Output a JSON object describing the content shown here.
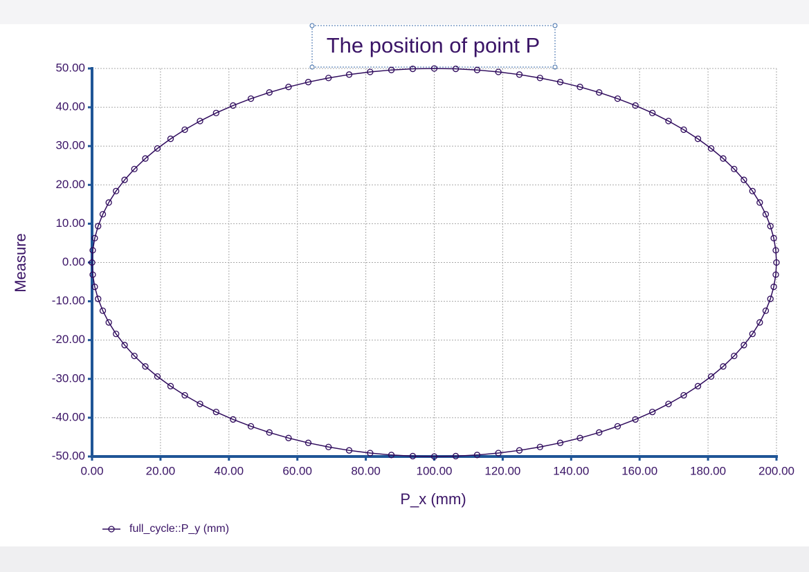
{
  "chart_data": {
    "type": "line",
    "title": "The position of point P",
    "x_label": "P_x (mm)",
    "y_label": "Measure",
    "x": [
      200,
      199.8,
      199.21,
      198.23,
      196.86,
      195.11,
      192.98,
      190.48,
      187.63,
      184.43,
      180.9,
      177.05,
      172.9,
      168.45,
      163.74,
      158.78,
      153.58,
      148.18,
      142.58,
      136.81,
      130.9,
      124.87,
      118.74,
      112.53,
      106.28,
      100,
      93.72,
      87.47,
      81.26,
      75.13,
      69.1,
      63.19,
      57.42,
      51.82,
      46.42,
      41.22,
      36.26,
      31.55,
      27.1,
      22.95,
      19.1,
      15.57,
      12.37,
      9.52,
      7.02,
      4.89,
      3.14,
      1.77,
      0.79,
      0.2,
      0,
      0.2,
      0.79,
      1.77,
      3.14,
      4.89,
      7.02,
      9.52,
      12.37,
      15.57,
      19.1,
      22.95,
      27.1,
      31.55,
      36.26,
      41.22,
      46.42,
      51.82,
      57.42,
      63.19,
      69.1,
      75.13,
      81.26,
      87.47,
      93.72,
      100,
      106.28,
      112.53,
      118.74,
      124.87,
      130.9,
      136.81,
      142.58,
      148.18,
      153.58,
      158.78,
      163.74,
      168.45,
      172.9,
      177.05,
      180.9,
      184.43,
      187.63,
      190.48,
      192.98,
      195.11,
      196.86,
      198.23,
      199.21,
      199.8
    ],
    "series": [
      {
        "name": "full_cycle::P_y (mm)",
        "color": "#2e0a5c",
        "markers": true,
        "values": [
          0,
          3.14,
          6.27,
          9.37,
          12.43,
          15.45,
          18.41,
          21.29,
          24.09,
          26.79,
          29.39,
          31.87,
          34.23,
          36.45,
          38.53,
          40.45,
          42.22,
          43.82,
          45.24,
          46.49,
          47.55,
          48.43,
          49.11,
          49.61,
          49.9,
          50,
          49.9,
          49.61,
          49.11,
          48.43,
          47.55,
          46.49,
          45.24,
          43.82,
          42.22,
          40.45,
          38.53,
          36.45,
          34.23,
          31.87,
          29.39,
          26.79,
          24.09,
          21.29,
          18.41,
          15.45,
          12.43,
          9.37,
          6.27,
          3.14,
          0,
          -3.14,
          -6.27,
          -9.37,
          -12.43,
          -15.45,
          -18.41,
          -21.29,
          -24.09,
          -26.79,
          -29.39,
          -31.87,
          -34.23,
          -36.45,
          -38.53,
          -40.45,
          -42.22,
          -43.82,
          -45.24,
          -46.49,
          -47.55,
          -48.43,
          -49.11,
          -49.61,
          -49.9,
          -50,
          -49.9,
          -49.61,
          -49.11,
          -48.43,
          -47.55,
          -46.49,
          -45.24,
          -43.82,
          -42.22,
          -40.45,
          -38.53,
          -36.45,
          -34.23,
          -31.87,
          -29.39,
          -26.79,
          -24.09,
          -21.29,
          -18.41,
          -15.45,
          -12.43,
          -9.37,
          -6.27,
          -3.14
        ]
      }
    ],
    "xlim": [
      0,
      200
    ],
    "ylim": [
      -50,
      50
    ],
    "xticks": [
      {
        "value": 0,
        "label": "0.00"
      },
      {
        "value": 20,
        "label": "20.00"
      },
      {
        "value": 40,
        "label": "40.00"
      },
      {
        "value": 60,
        "label": "60.00"
      },
      {
        "value": 80,
        "label": "80.00"
      },
      {
        "value": 100,
        "label": "100.00"
      },
      {
        "value": 120,
        "label": "120.00"
      },
      {
        "value": 140,
        "label": "140.00"
      },
      {
        "value": 160,
        "label": "160.00"
      },
      {
        "value": 180,
        "label": "180.00"
      },
      {
        "value": 200,
        "label": "200.00"
      }
    ],
    "yticks": [
      {
        "value": 50,
        "label": "50.00"
      },
      {
        "value": 40,
        "label": "40.00"
      },
      {
        "value": 30,
        "label": "30.00"
      },
      {
        "value": 20,
        "label": "20.00"
      },
      {
        "value": 10,
        "label": "10.00"
      },
      {
        "value": 0,
        "label": "0.00"
      },
      {
        "value": -10,
        "label": "-10.00"
      },
      {
        "value": -20,
        "label": "-20.00"
      },
      {
        "value": -30,
        "label": "-30.00"
      },
      {
        "value": -40,
        "label": "-40.00"
      },
      {
        "value": -50,
        "label": "-50.00"
      }
    ],
    "grid": true,
    "legend": "bottom-left"
  }
}
